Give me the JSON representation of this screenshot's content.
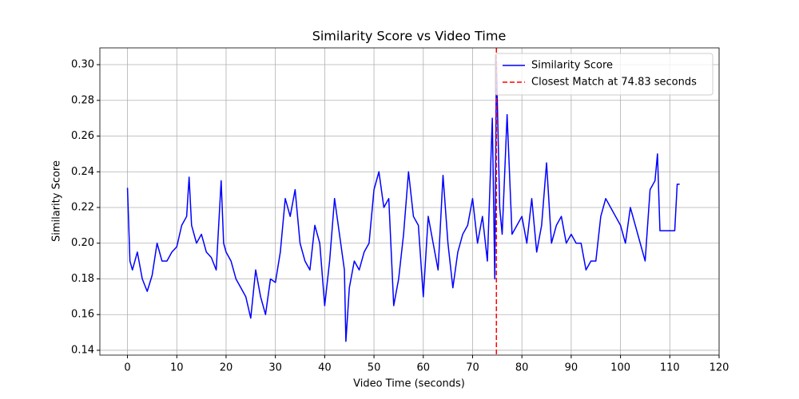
{
  "chart_data": {
    "type": "line",
    "title": "Similarity Score vs Video Time",
    "xlabel": "Video Time (seconds)",
    "ylabel": "Similarity Score",
    "x": [
      0,
      0.5,
      1,
      2,
      3,
      4,
      5,
      6,
      7,
      8,
      9,
      10,
      11,
      12,
      12.5,
      13,
      14,
      15,
      16,
      17,
      18,
      19,
      19.5,
      20,
      21,
      22,
      23,
      24,
      25,
      26,
      27,
      28,
      29,
      30,
      31,
      32,
      33,
      34,
      35,
      36,
      37,
      38,
      39,
      40,
      41,
      42,
      43,
      44,
      44.3,
      45,
      46,
      47,
      48,
      49,
      50,
      51,
      52,
      53,
      54,
      55,
      56,
      57,
      58,
      59,
      60,
      61,
      62,
      63,
      64,
      65,
      66,
      67,
      68,
      69,
      70,
      71,
      72,
      73,
      74,
      74.5,
      74.83,
      75.5,
      76,
      77,
      78,
      79,
      80,
      81,
      82,
      83,
      84,
      85,
      86,
      87,
      88,
      89,
      90,
      91,
      92,
      93,
      94,
      95,
      96,
      97,
      98,
      99,
      100,
      101,
      102,
      103,
      104,
      105,
      106,
      107,
      107.5,
      108,
      111,
      111.5,
      112
    ],
    "series": [
      {
        "name": "Similarity Score",
        "color": "#0000ff",
        "values": [
          0.231,
          0.19,
          0.185,
          0.195,
          0.18,
          0.173,
          0.182,
          0.2,
          0.19,
          0.19,
          0.195,
          0.198,
          0.21,
          0.215,
          0.237,
          0.21,
          0.2,
          0.205,
          0.195,
          0.192,
          0.185,
          0.235,
          0.2,
          0.195,
          0.19,
          0.18,
          0.175,
          0.17,
          0.158,
          0.185,
          0.17,
          0.16,
          0.18,
          0.178,
          0.195,
          0.225,
          0.215,
          0.23,
          0.2,
          0.19,
          0.185,
          0.21,
          0.2,
          0.165,
          0.19,
          0.225,
          0.205,
          0.185,
          0.145,
          0.175,
          0.19,
          0.185,
          0.195,
          0.2,
          0.23,
          0.24,
          0.22,
          0.225,
          0.165,
          0.18,
          0.205,
          0.24,
          0.215,
          0.21,
          0.17,
          0.215,
          0.2,
          0.185,
          0.238,
          0.2,
          0.175,
          0.195,
          0.205,
          0.21,
          0.225,
          0.2,
          0.215,
          0.19,
          0.27,
          0.18,
          0.302,
          0.22,
          0.205,
          0.272,
          0.205,
          0.21,
          0.215,
          0.2,
          0.225,
          0.195,
          0.21,
          0.245,
          0.2,
          0.21,
          0.215,
          0.2,
          0.205,
          0.2,
          0.2,
          0.185,
          0.19,
          0.19,
          0.215,
          0.225,
          0.22,
          0.215,
          0.21,
          0.2,
          0.22,
          0.21,
          0.2,
          0.19,
          0.23,
          0.235,
          0.25,
          0.207,
          0.207,
          0.233,
          0.233
        ]
      }
    ],
    "vline": {
      "x": 74.83,
      "name": "Closest Match at 74.83 seconds",
      "color": "#ff0000"
    },
    "xlim": [
      -5.6,
      120
    ],
    "ylim": [
      0.1373,
      0.3094
    ],
    "xticks": [
      0,
      10,
      20,
      30,
      40,
      50,
      60,
      70,
      80,
      90,
      100,
      110,
      120
    ],
    "yticks": [
      0.14,
      0.16,
      0.18,
      {
        "value": 0.2,
        "label": "0.20"
      },
      0.22,
      0.24,
      0.26,
      0.28,
      {
        "value": 0.3,
        "label": "0.30"
      }
    ],
    "grid": true,
    "legend": "upper right"
  }
}
